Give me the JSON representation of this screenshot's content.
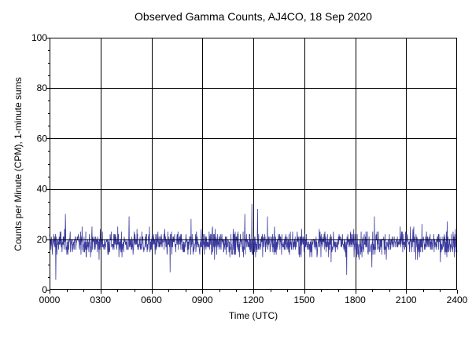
{
  "chart_data": {
    "type": "line",
    "title": "Observed Gamma Counts, AJ4CO, 18 Sep 2020",
    "xlabel": "Time (UTC)",
    "ylabel": "Counts per Minute (CPM), 1-minute sums",
    "xlim": [
      0,
      1440
    ],
    "ylim": [
      0,
      100
    ],
    "x_unit": "minutes since 0000 UTC",
    "x_ticks": [
      {
        "value": 0,
        "label": "0000"
      },
      {
        "value": 180,
        "label": "0300"
      },
      {
        "value": 360,
        "label": "0600"
      },
      {
        "value": 540,
        "label": "0900"
      },
      {
        "value": 720,
        "label": "1200"
      },
      {
        "value": 900,
        "label": "1500"
      },
      {
        "value": 1080,
        "label": "1800"
      },
      {
        "value": 1260,
        "label": "2100"
      },
      {
        "value": 1440,
        "label": "2400"
      }
    ],
    "y_ticks": [
      {
        "value": 0,
        "label": "0"
      },
      {
        "value": 20,
        "label": "20"
      },
      {
        "value": 40,
        "label": "40"
      },
      {
        "value": 60,
        "label": "60"
      },
      {
        "value": 80,
        "label": "80"
      },
      {
        "value": 100,
        "label": "100"
      }
    ],
    "grid": true,
    "reference_line": {
      "y": 20,
      "color": "#000000"
    },
    "series": [
      {
        "name": "",
        "color": "#3b3b9f",
        "sampling": "1-minute sums",
        "mean": 18.5,
        "typical_range": [
          10,
          27
        ],
        "x_start": 0,
        "x_step": 1,
        "values": []
      }
    ],
    "notable_points": [
      {
        "x": 22,
        "y": 4
      },
      {
        "x": 56,
        "y": 30
      },
      {
        "x": 281,
        "y": 29
      },
      {
        "x": 426,
        "y": 7
      },
      {
        "x": 500,
        "y": 28
      },
      {
        "x": 690,
        "y": 30
      },
      {
        "x": 715,
        "y": 34
      },
      {
        "x": 735,
        "y": 32
      },
      {
        "x": 770,
        "y": 29
      },
      {
        "x": 1050,
        "y": 6
      },
      {
        "x": 1139,
        "y": 9
      },
      {
        "x": 1148,
        "y": 29
      },
      {
        "x": 1405,
        "y": 27
      }
    ]
  }
}
